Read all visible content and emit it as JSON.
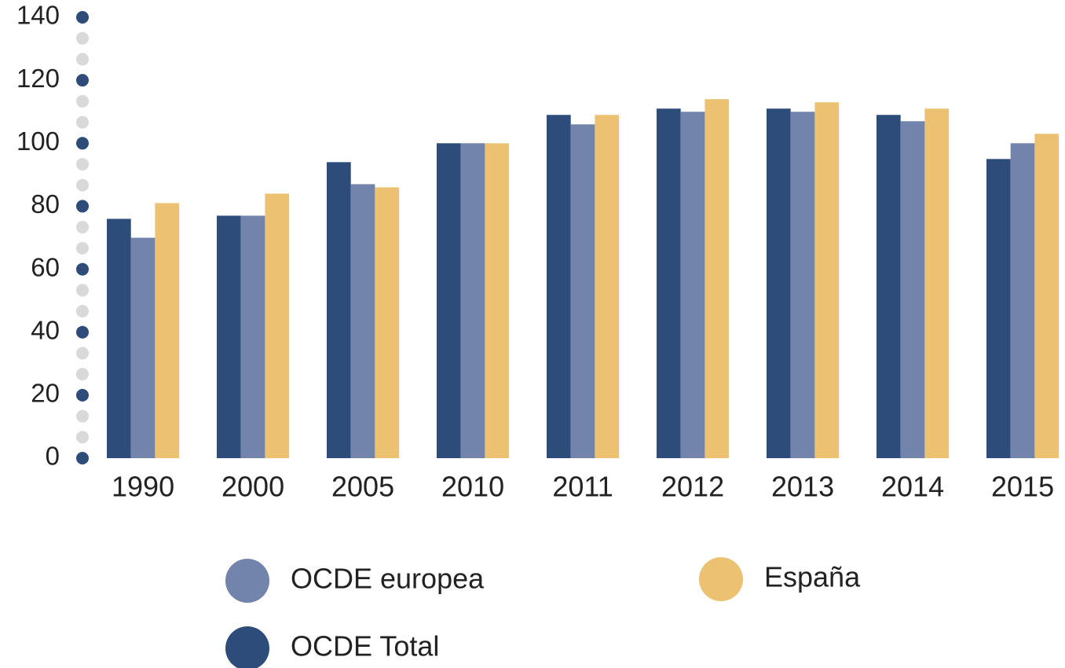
{
  "chart_data": {
    "type": "bar",
    "categories": [
      "1990",
      "2000",
      "2005",
      "2010",
      "2011",
      "2012",
      "2013",
      "2014",
      "2015"
    ],
    "series": [
      {
        "name": "OCDE Total",
        "color": "#2d4c7a",
        "values": [
          76,
          77,
          94,
          100,
          109,
          111,
          111,
          109,
          95
        ]
      },
      {
        "name": "OCDE europea",
        "color": "#7284ab",
        "values": [
          70,
          77,
          87,
          100,
          106,
          110,
          110,
          107,
          100
        ]
      },
      {
        "name": "España",
        "color": "#ecc172",
        "values": [
          81,
          84,
          86,
          100,
          109,
          114,
          113,
          111,
          103
        ]
      }
    ],
    "ylim": [
      0,
      140
    ],
    "yticks": [
      0,
      20,
      40,
      60,
      80,
      100,
      120,
      140
    ],
    "grid": false
  }
}
